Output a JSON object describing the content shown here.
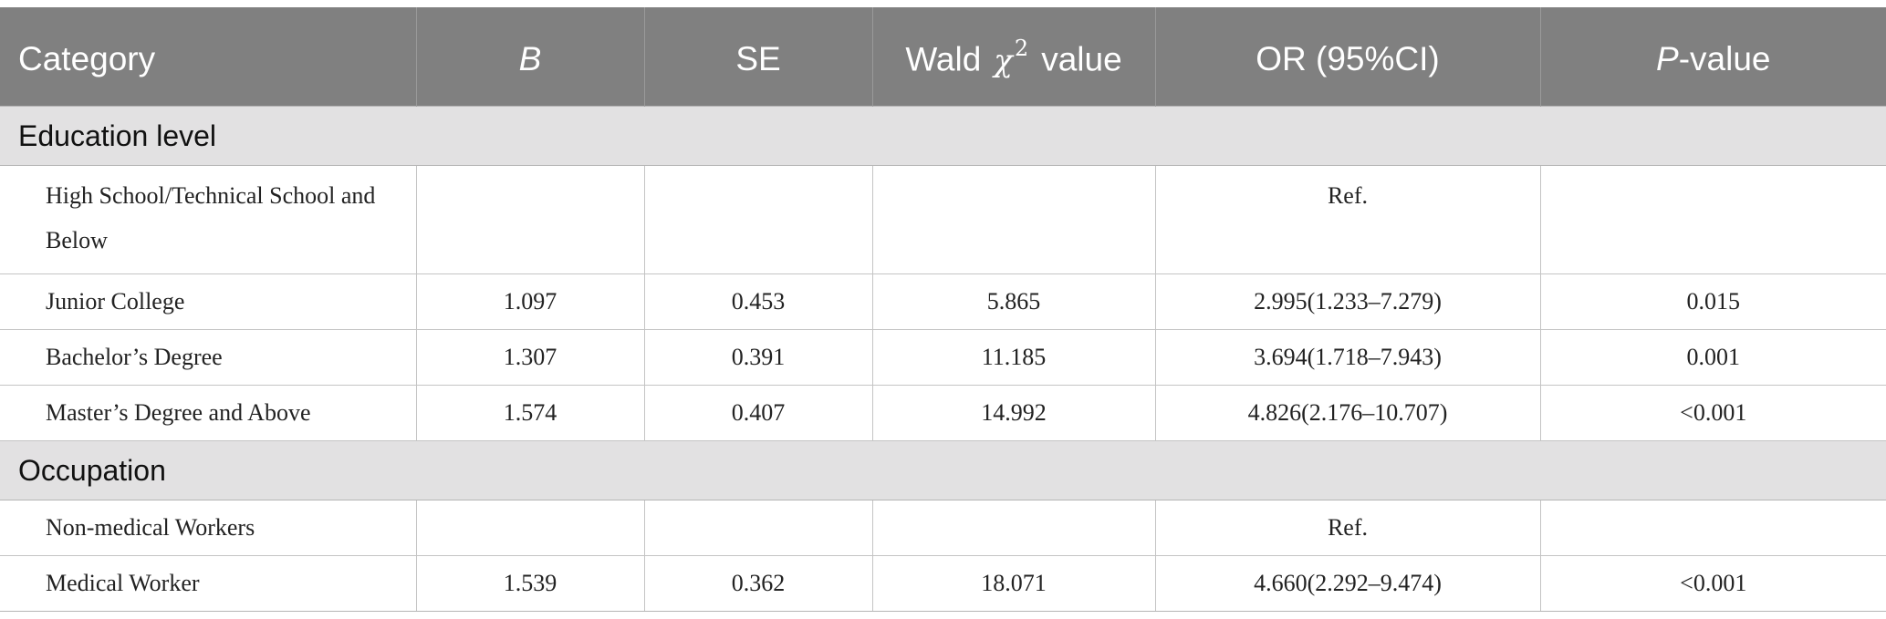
{
  "table": {
    "headers": {
      "category": "Category",
      "b": "B",
      "se": "SE",
      "wald_prefix": "Wald",
      "wald_symbol": "χ",
      "wald_exp": "2",
      "wald_suffix": "value",
      "or": "OR (95%CI)",
      "p_symbol": "P",
      "p_suffix": "-value"
    },
    "sections": [
      {
        "title": "Education level",
        "rows": [
          {
            "label": "High School/Technical School and Below",
            "b": "",
            "se": "",
            "wald": "",
            "or": "Ref.",
            "p": ""
          },
          {
            "label": "Junior College",
            "b": "1.097",
            "se": "0.453",
            "wald": "5.865",
            "or": "2.995(1.233–7.279)",
            "p": "0.015"
          },
          {
            "label": "Bachelor’s Degree",
            "b": "1.307",
            "se": "0.391",
            "wald": "11.185",
            "or": "3.694(1.718–7.943)",
            "p": "0.001"
          },
          {
            "label": "Master’s Degree and Above",
            "b": "1.574",
            "se": "0.407",
            "wald": "14.992",
            "or": "4.826(2.176–10.707)",
            "p": "<0.001"
          }
        ]
      },
      {
        "title": "Occupation",
        "rows": [
          {
            "label": "Non-medical Workers",
            "b": "",
            "se": "",
            "wald": "",
            "or": "Ref.",
            "p": ""
          },
          {
            "label": "Medical Worker",
            "b": "1.539",
            "se": "0.362",
            "wald": "18.071",
            "or": "4.660(2.292–9.474)",
            "p": "<0.001"
          }
        ]
      }
    ]
  }
}
